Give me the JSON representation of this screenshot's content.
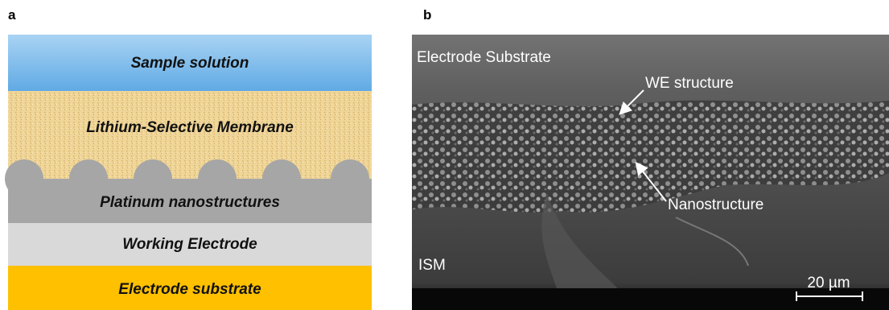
{
  "panel_a": {
    "label": "a",
    "layers": [
      "Sample solution",
      "Lithium-Selective Membrane",
      "Platinum nanostructures",
      "Working Electrode",
      "Electrode substrate"
    ]
  },
  "panel_b": {
    "label": "b",
    "annotations": [
      "Electrode Substrate",
      "WE structure",
      "Nanostructure",
      "ISM"
    ],
    "scale_bar": "20 µm"
  }
}
